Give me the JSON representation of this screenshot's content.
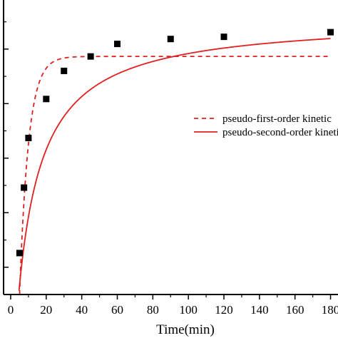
{
  "chart_data": {
    "type": "scatter",
    "xlabel": "Time(min)",
    "ylabel": "",
    "xlim": [
      -4,
      185
    ],
    "ylim": [
      0,
      1.08
    ],
    "x_ticks": [
      0,
      20,
      40,
      60,
      80,
      100,
      120,
      140,
      160,
      180
    ],
    "x_tick_labels": [
      "0",
      "20",
      "40",
      "60",
      "80",
      "100",
      "120",
      "140",
      "160",
      "180"
    ],
    "y_ticks": [
      0.1,
      0.3,
      0.5,
      0.7,
      0.9
    ],
    "y_minor_ticks": [
      0.2,
      0.4,
      0.6,
      0.8,
      1.0
    ],
    "grid": false,
    "legend_position": "right",
    "colors": {
      "fit": "#e02020",
      "points": "#000000",
      "axis": "#000000"
    },
    "points": {
      "x": [
        5,
        7.5,
        10,
        20,
        30,
        45,
        60,
        90,
        120,
        180
      ],
      "y": [
        0.152,
        0.392,
        0.574,
        0.717,
        0.82,
        0.873,
        0.919,
        0.937,
        0.945,
        0.962
      ]
    },
    "series": [
      {
        "name": "pseudo-first-order kinetic",
        "style": "dashed",
        "model": "pseudo-first-order",
        "params": {
          "qe": 0.873,
          "k1": 0.2,
          "t0": 5
        }
      },
      {
        "name": "pseudo-second-order kinetic",
        "style": "solid",
        "model": "pseudo-second-order",
        "params": {
          "qe": 1.014,
          "k2": 0.07,
          "t0": 4.5
        }
      }
    ]
  },
  "legend": {
    "first_label": "pseudo-first-order kinetic",
    "second_label": "pseudo-second-order kinetic"
  }
}
